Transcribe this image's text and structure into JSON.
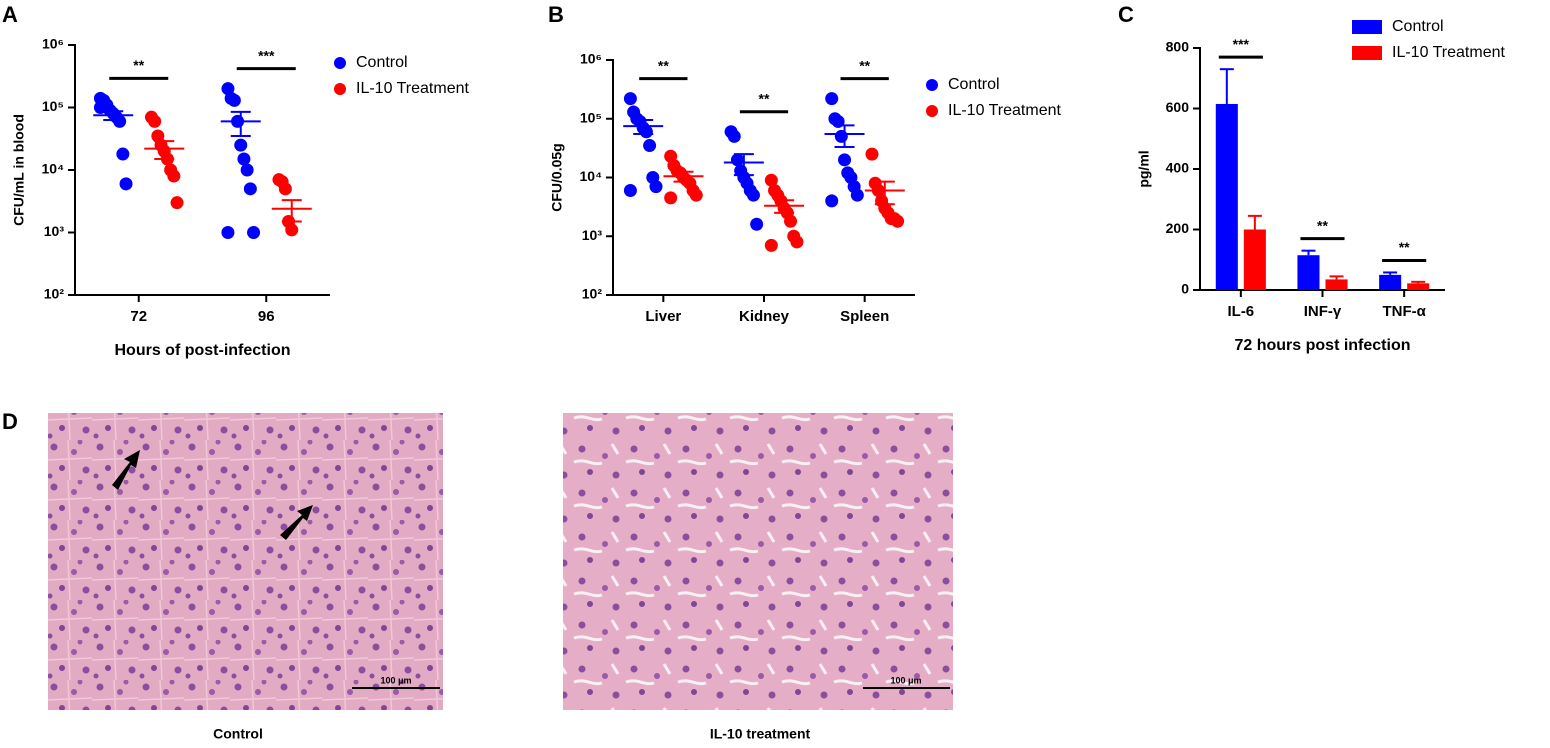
{
  "chart_data": [
    {
      "type": "dotplot",
      "panel": "A",
      "ylabel": "CFU/mL in blood",
      "xlabel": "Hours of post-infection",
      "categories": [
        "72",
        "96"
      ],
      "log_y": true,
      "ylim": [
        100,
        1000000
      ],
      "yticks": [
        {
          "value": 100,
          "label": "10²"
        },
        {
          "value": 1000,
          "label": "10³"
        },
        {
          "value": 10000,
          "label": "10⁴"
        },
        {
          "value": 100000,
          "label": "10⁵"
        },
        {
          "value": 1000000,
          "label": "10⁶"
        }
      ],
      "significance": [
        "**",
        "***"
      ],
      "series": [
        {
          "name": "Control",
          "color": "#0000ff",
          "points": [
            [
              140000,
              130000,
              110000,
              90000,
              80000,
              70000,
              60000,
              18000,
              6000,
              100000
            ],
            [
              200000,
              140000,
              130000,
              60000,
              25000,
              15000,
              10000,
              5000,
              1000,
              1000
            ]
          ],
          "means": [
            75000,
            60000
          ],
          "sems": [
            12000,
            25000
          ]
        },
        {
          "name": "IL-10 Treatment",
          "color": "#ff0000",
          "points": [
            [
              70000,
              60000,
              35000,
              25000,
              20000,
              15000,
              10000,
              8000,
              3000
            ],
            [
              7000,
              6500,
              5000,
              1500,
              1100
            ]
          ],
          "means": [
            22000,
            2400
          ],
          "sems": [
            7000,
            900
          ]
        }
      ]
    },
    {
      "type": "dotplot",
      "panel": "B",
      "ylabel": "CFU/0.05g",
      "categories": [
        "Liver",
        "Kidney",
        "Spleen"
      ],
      "log_y": true,
      "ylim": [
        100,
        1000000
      ],
      "yticks": [
        {
          "value": 100,
          "label": "10²"
        },
        {
          "value": 1000,
          "label": "10³"
        },
        {
          "value": 10000,
          "label": "10⁴"
        },
        {
          "value": 100000,
          "label": "10⁵"
        },
        {
          "value": 1000000,
          "label": "10⁶"
        }
      ],
      "significance": [
        "**",
        "**",
        "**"
      ],
      "series": [
        {
          "name": "Control",
          "color": "#0000ff",
          "points": [
            [
              220000,
              130000,
              100000,
              90000,
              70000,
              60000,
              35000,
              10000,
              7000,
              6000
            ],
            [
              60000,
              50000,
              20000,
              13000,
              10000,
              8000,
              6000,
              5000,
              1600
            ],
            [
              220000,
              100000,
              90000,
              50000,
              20000,
              12000,
              10000,
              7000,
              5000,
              4000
            ]
          ],
          "means": [
            75000,
            18000,
            55000
          ],
          "sems": [
            20000,
            7000,
            22000
          ]
        },
        {
          "name": "IL-10 Treatment",
          "color": "#ff0000",
          "points": [
            [
              23000,
              16000,
              13000,
              12000,
              10000,
              9000,
              8000,
              6000,
              5000,
              4500
            ],
            [
              9000,
              6000,
              5000,
              4000,
              3000,
              2500,
              1800,
              1000,
              800,
              700
            ],
            [
              25000,
              8000,
              6000,
              4000,
              3000,
              2500,
              2000,
              2000,
              1800
            ]
          ],
          "means": [
            10500,
            3300,
            6000
          ],
          "sems": [
            2000,
            800,
            2500
          ]
        }
      ]
    },
    {
      "type": "bar",
      "panel": "C",
      "ylabel": "pg/ml",
      "xlabel": "72 hours post infection",
      "categories": [
        "IL-6",
        "INF-γ",
        "TNF-α"
      ],
      "ylim": [
        0,
        800
      ],
      "yticks": [
        0,
        200,
        400,
        600,
        800
      ],
      "significance": [
        "***",
        "**",
        "**"
      ],
      "series": [
        {
          "name": "Control",
          "color": "#0000ff",
          "values": [
            615,
            115,
            50
          ],
          "errors": [
            115,
            15,
            8
          ]
        },
        {
          "name": "IL-10 Treatment",
          "color": "#ff0000",
          "values": [
            200,
            35,
            22
          ],
          "errors": [
            45,
            10,
            5
          ]
        }
      ]
    }
  ],
  "histology": {
    "panel": "D",
    "images": [
      {
        "caption": "Control",
        "scale_bar": "100 μm"
      },
      {
        "caption": "IL-10 treatment",
        "scale_bar": "100 μm"
      }
    ]
  }
}
